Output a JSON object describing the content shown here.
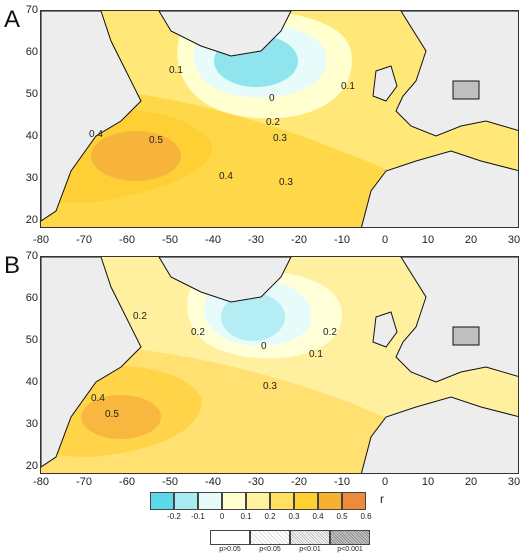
{
  "panels": [
    {
      "letter": "A"
    },
    {
      "letter": "B"
    }
  ],
  "axes": {
    "y_ticks": [
      "70",
      "60",
      "50",
      "40",
      "30",
      "20"
    ],
    "x_ticks": [
      "-80",
      "-70",
      "-60",
      "-50",
      "-40",
      "-30",
      "-20",
      "-10",
      "0",
      "10",
      "20",
      "30"
    ]
  },
  "contour_labels_a": [
    "0.1",
    "0",
    "0.1",
    "0.2",
    "0.3",
    "0.4",
    "0.5",
    "0.4",
    "0.3"
  ],
  "contour_labels_b": [
    "0.2",
    "0.2",
    "0",
    "0.1",
    "0.2",
    "0.3",
    "0.4",
    "0.5"
  ],
  "colorbar": {
    "labels": [
      "-0.2",
      "-0.1",
      "0",
      "0.1",
      "0.2",
      "0.3",
      "0.4",
      "0.5",
      "0.6"
    ],
    "colors": [
      "#5bd9e8",
      "#a8ecf2",
      "#e8fbfb",
      "#ffffd0",
      "#fff2a0",
      "#ffe060",
      "#ffd030",
      "#f8b030",
      "#f08a3a"
    ],
    "unit": "r"
  },
  "significance": {
    "labels": [
      "p>0.05",
      "p<0.05",
      "p<0.01",
      "p<0.001"
    ]
  }
}
